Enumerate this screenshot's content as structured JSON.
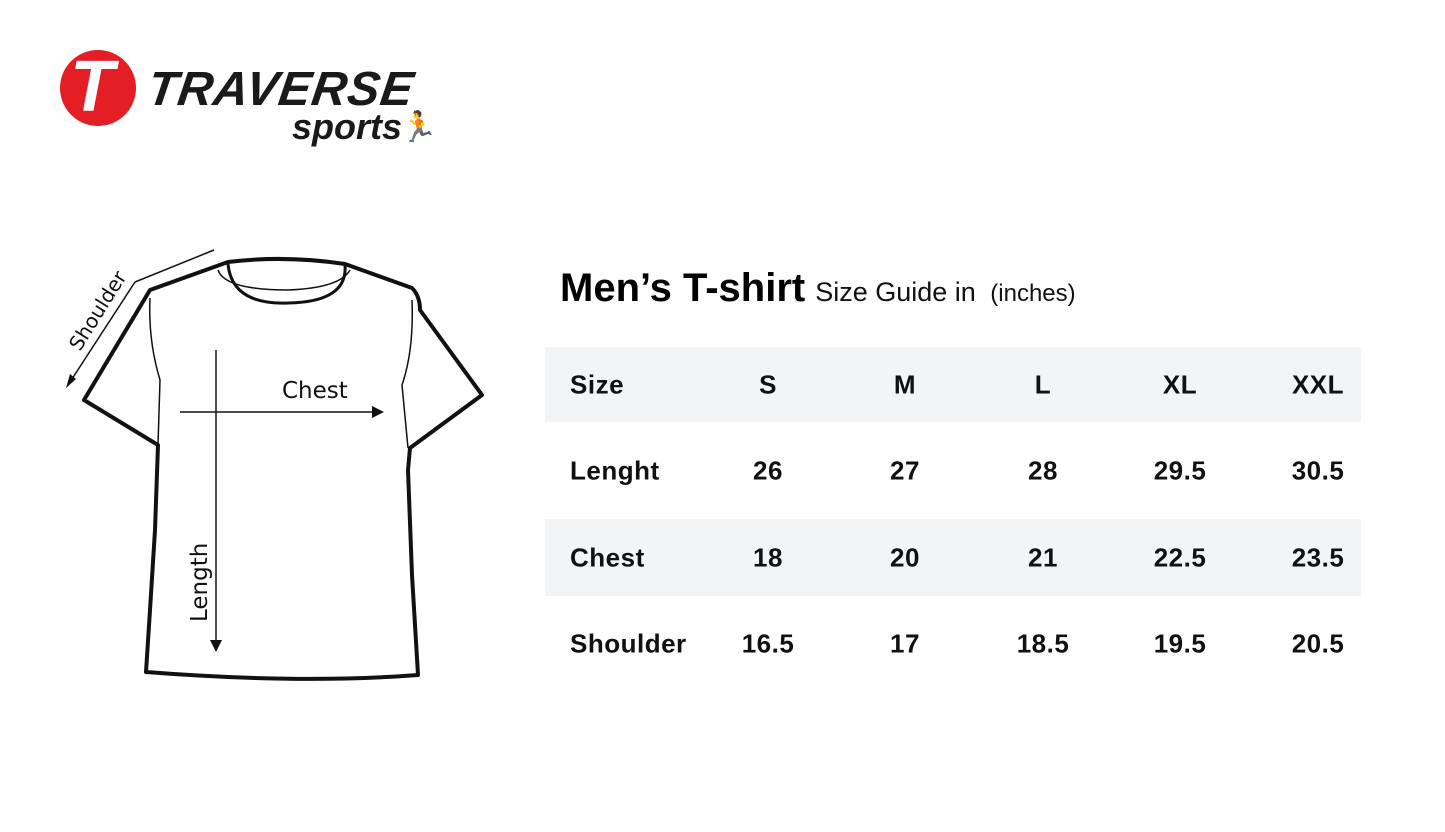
{
  "logo": {
    "mark": "T",
    "brand": "TRAVERSE",
    "sub": "sports",
    "colors": {
      "red": "#e31e24",
      "dark": "#1a1a1a"
    }
  },
  "diagram": {
    "shoulder_label": "Shoulder",
    "chest_label": "Chest",
    "length_label": "Length"
  },
  "title": {
    "main": "Men’s T-shirt",
    "guide": "Size Guide in",
    "unit": "(inches)"
  },
  "table": {
    "header": [
      "Size",
      "S",
      "M",
      "L",
      "XL",
      "XXL"
    ],
    "rows": [
      {
        "label": "Lenght",
        "values": [
          "26",
          "27",
          "28",
          "29.5",
          "30.5"
        ]
      },
      {
        "label": "Chest",
        "values": [
          "18",
          "20",
          "21",
          "22.5",
          "23.5"
        ]
      },
      {
        "label": "Shoulder",
        "values": [
          "16.5",
          "17",
          "18.5",
          "19.5",
          "20.5"
        ]
      }
    ],
    "stripe_color": "#f3f4f6"
  }
}
